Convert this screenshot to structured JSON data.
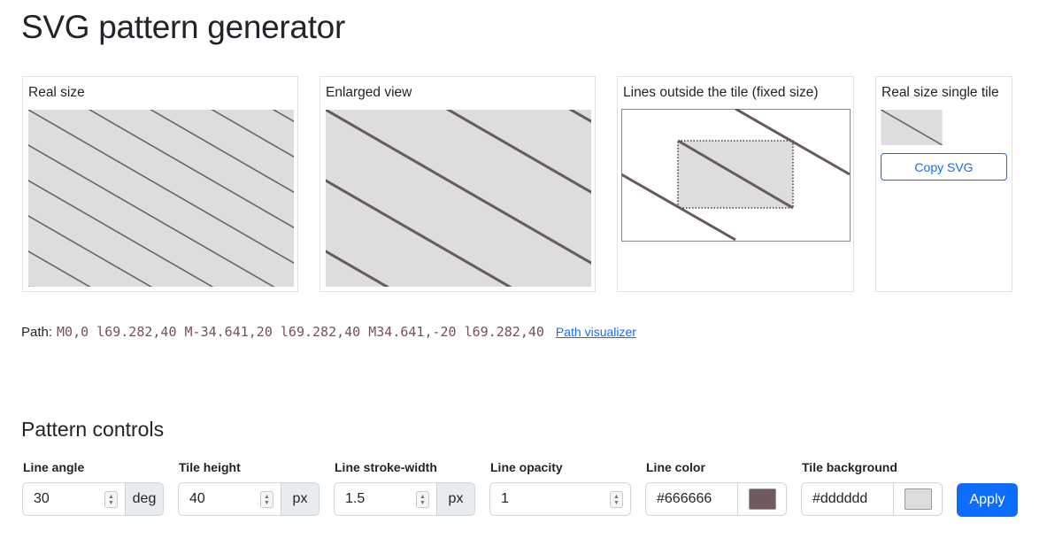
{
  "page": {
    "title": "SVG pattern generator"
  },
  "panels": {
    "real_size": "Real size",
    "enlarged": "Enlarged view",
    "outside": "Lines outside the tile (fixed size)",
    "single_tile": "Real size single tile",
    "copy_svg": "Copy SVG"
  },
  "path": {
    "label": "Path:",
    "value": "M0,0 l69.282,40 M-34.641,20 l69.282,40 M34.641,-20 l69.282,40",
    "link": "Path visualizer"
  },
  "controls": {
    "heading": "Pattern controls",
    "angle": {
      "label": "Line angle",
      "value": "30",
      "unit": "deg"
    },
    "height": {
      "label": "Tile height",
      "value": "40",
      "unit": "px"
    },
    "stroke": {
      "label": "Line stroke-width",
      "value": "1.5",
      "unit": "px"
    },
    "opacity": {
      "label": "Line opacity",
      "value": "1"
    },
    "line_color": {
      "label": "Line color",
      "value": "#666666"
    },
    "tile_bg": {
      "label": "Tile background",
      "value": "#dddddd"
    },
    "apply": "Apply"
  },
  "icons": {
    "spinner": "spin-updown-icon"
  },
  "colors": {
    "line": "#665a5e",
    "tile": "#dddddd",
    "accent": "#0d6efd",
    "code": "#7a4f59"
  }
}
